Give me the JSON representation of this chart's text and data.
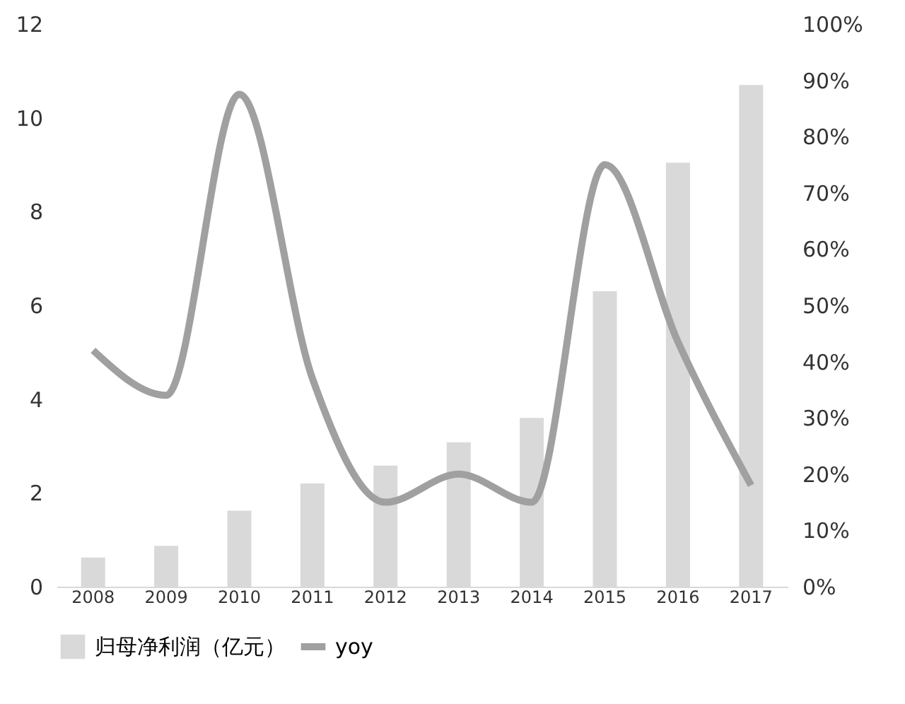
{
  "chart_data": {
    "type": "bar",
    "categories": [
      "2008",
      "2009",
      "2010",
      "2011",
      "2012",
      "2013",
      "2014",
      "2015",
      "2016",
      "2017"
    ],
    "series": [
      {
        "name": "归母净利润（亿元）",
        "color": "#d9d9d9",
        "values": [
          0.62,
          0.87,
          1.62,
          2.2,
          2.58,
          3.08,
          3.6,
          6.3,
          9.04,
          10.7
        ]
      },
      {
        "name": "yoy",
        "type": "line",
        "axis": "y2",
        "color": "#a0a0a0",
        "values": [
          42,
          34,
          87.5,
          37,
          15,
          20,
          15,
          75,
          43.5,
          18
        ]
      }
    ],
    "ylim": [
      0,
      12
    ],
    "yticks": [
      0,
      2,
      4,
      6,
      8,
      10,
      12
    ],
    "y2lim": [
      0,
      100
    ],
    "y2ticks": [
      {
        "value": 0,
        "label": "0%"
      },
      {
        "value": 10,
        "label": "10%"
      },
      {
        "value": 20,
        "label": "20%"
      },
      {
        "value": 30,
        "label": "30%"
      },
      {
        "value": 40,
        "label": "40%"
      },
      {
        "value": 50,
        "label": "50%"
      },
      {
        "value": 60,
        "label": "60%"
      },
      {
        "value": 70,
        "label": "70%"
      },
      {
        "value": 80,
        "label": "80%"
      },
      {
        "value": 90,
        "label": "90%"
      },
      {
        "value": 100,
        "label": "100%"
      }
    ],
    "grid": false,
    "legend": "bottom",
    "line_style": "solid",
    "marker": "none"
  }
}
